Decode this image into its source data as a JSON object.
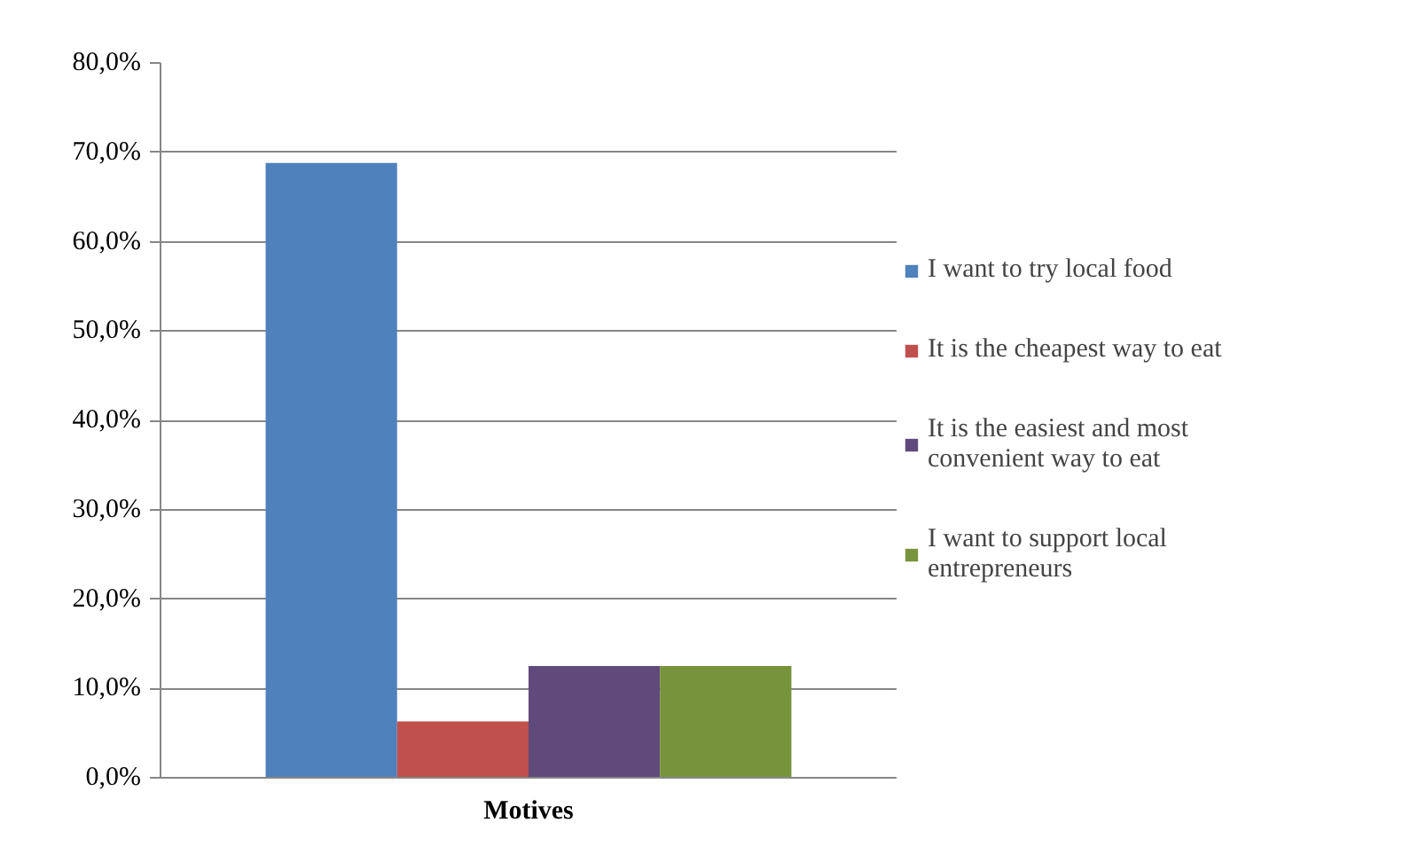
{
  "chart_data": {
    "type": "bar",
    "categories": [
      "Motives"
    ],
    "series": [
      {
        "name": "I want to try local food",
        "color": "#4f81bd",
        "values": [
          68.8
        ]
      },
      {
        "name": "It is the cheapest way to eat",
        "color": "#c0504d",
        "values": [
          6.3
        ]
      },
      {
        "name": "It is the easiest and most convenient way to eat",
        "color": "#604a7b",
        "values": [
          12.5
        ]
      },
      {
        "name": "I want to support local entrepreneurs",
        "color": "#77933c",
        "values": [
          12.5
        ]
      }
    ],
    "ylim": [
      0,
      80
    ],
    "yticks": [
      {
        "value": 0,
        "label": "0,0%"
      },
      {
        "value": 10,
        "label": "10,0%"
      },
      {
        "value": 20,
        "label": "20,0%"
      },
      {
        "value": 30,
        "label": "30,0%"
      },
      {
        "value": 40,
        "label": "40,0%"
      },
      {
        "value": 50,
        "label": "50,0%"
      },
      {
        "value": 60,
        "label": "60,0%"
      },
      {
        "value": 70,
        "label": "70,0%"
      },
      {
        "value": 80,
        "label": "80,0%"
      }
    ],
    "grid": "y",
    "legend": "right"
  }
}
